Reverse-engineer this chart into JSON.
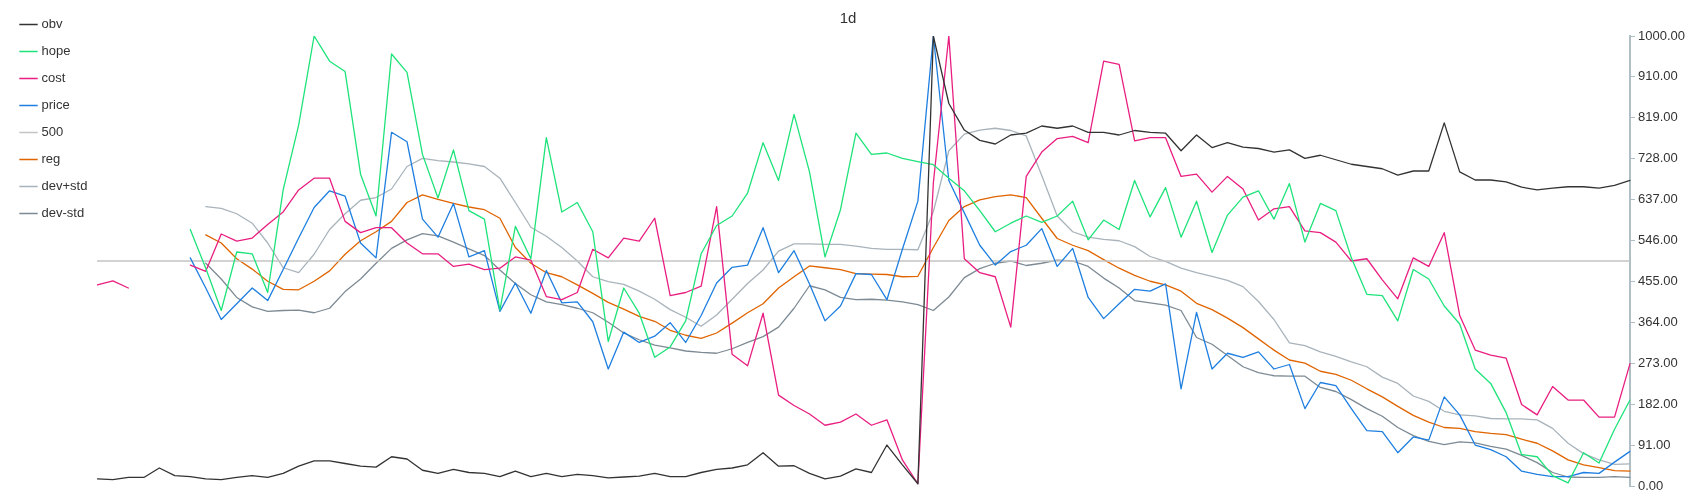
{
  "chart_data": {
    "type": "line",
    "title": "1d",
    "categories": [
      null,
      null,
      null,
      null,
      null,
      null,
      null,
      null,
      null,
      null,
      null,
      null,
      null,
      null,
      null,
      null,
      null,
      null,
      null,
      null,
      null,
      null,
      null,
      null,
      null,
      null,
      null,
      null,
      null,
      null,
      null,
      null,
      null,
      null,
      null,
      null,
      null,
      null,
      null,
      null,
      null,
      null,
      null,
      null,
      null,
      null,
      null,
      null,
      null,
      null,
      null,
      null,
      null,
      null,
      null,
      null,
      null,
      null,
      null,
      null,
      null,
      null,
      null,
      null,
      null,
      null,
      null,
      null,
      null,
      null,
      null,
      null,
      null,
      null,
      null,
      null,
      null,
      null,
      null,
      null,
      null,
      null,
      null,
      null,
      null,
      null,
      null,
      null,
      null,
      null,
      null,
      null,
      null,
      null,
      null,
      null,
      null,
      null,
      null,
      null
    ],
    "ylim": [
      0,
      1000
    ],
    "yticks": [
      {
        "value": 0,
        "label": "0.00"
      },
      {
        "value": 91,
        "label": "91.00"
      },
      {
        "value": 182,
        "label": "182.00"
      },
      {
        "value": 273,
        "label": "273.00"
      },
      {
        "value": 364,
        "label": "364.00"
      },
      {
        "value": 455,
        "label": "455.00"
      },
      {
        "value": 546,
        "label": "546.00"
      },
      {
        "value": 637,
        "label": "637.00"
      },
      {
        "value": 728,
        "label": "728.00"
      },
      {
        "value": 819,
        "label": "819.00"
      },
      {
        "value": 910,
        "label": "910.00"
      },
      {
        "value": 1000,
        "label": "1000.00"
      }
    ],
    "legend": "top left",
    "marker": "none",
    "line_style": "solid",
    "series": [
      {
        "name": "obv",
        "color": "#333333",
        "values": [
          16,
          14,
          19,
          19,
          40,
          23,
          21,
          16,
          14,
          19,
          23,
          19,
          28,
          44,
          56,
          56,
          50,
          44,
          42,
          65,
          60,
          35,
          28,
          37,
          30,
          28,
          21,
          33,
          21,
          28,
          21,
          26,
          23,
          18,
          20,
          22,
          28,
          21,
          21,
          30,
          37,
          40,
          47,
          74,
          44,
          45,
          28,
          16,
          22,
          38,
          30,
          91,
          47,
          5,
          1000,
          850,
          791,
          768,
          760,
          780,
          784,
          800,
          795,
          800,
          786,
          786,
          780,
          790,
          786,
          784,
          745,
          780,
          752,
          763,
          753,
          750,
          742,
          747,
          728,
          735,
          725,
          715,
          710,
          705,
          691,
          700,
          700,
          807,
          698,
          680,
          680,
          676,
          664,
          658,
          662,
          665,
          665,
          662,
          668,
          679
        ]
      },
      {
        "name": "hope",
        "color": "#1ee37a",
        "values": [
          null,
          null,
          null,
          null,
          null,
          null,
          570,
          484,
          390,
          520,
          516,
          430,
          658,
          802,
          1000,
          944,
          921,
          693,
          600,
          960,
          919,
          737,
          640,
          747,
          612,
          593,
          391,
          577,
          505,
          774,
          609,
          630,
          565,
          321,
          440,
          384,
          286,
          309,
          367,
          516,
          579,
          600,
          651,
          763,
          679,
          826,
          698,
          509,
          614,
          784,
          737,
          740,
          728,
          721,
          714,
          684,
          656,
          612,
          565,
          584,
          600,
          586,
          600,
          633,
          547,
          591,
          570,
          679,
          598,
          663,
          553,
          633,
          519,
          602,
          642,
          656,
          593,
          672,
          542,
          628,
          612,
          507,
          426,
          423,
          367,
          481,
          460,
          400,
          360,
          260,
          228,
          163,
          70,
          65,
          23,
          7,
          74,
          51,
          126,
          191
        ]
      },
      {
        "name": "cost",
        "color": "#e91e80",
        "values": [
          447,
          456,
          440,
          null,
          null,
          null,
          491,
          477,
          560,
          544,
          551,
          581,
          609,
          658,
          684,
          684,
          588,
          563,
          574,
          574,
          540,
          516,
          516,
          488,
          493,
          481,
          484,
          509,
          502,
          421,
          414,
          430,
          526,
          507,
          551,
          544,
          595,
          423,
          430,
          444,
          621,
          293,
          267,
          384,
          202,
          179,
          160,
          135,
          142,
          160,
          135,
          147,
          58,
          5,
          674,
          1000,
          505,
          474,
          465,
          353,
          688,
          742,
          772,
          777,
          763,
          944,
          937,
          767,
          774,
          774,
          688,
          693,
          653,
          688,
          660,
          591,
          616,
          621,
          567,
          563,
          542,
          500,
          505,
          458,
          416,
          507,
          488,
          563,
          379,
          302,
          291,
          284,
          181,
          158,
          221,
          191,
          191,
          153,
          153,
          272
        ]
      },
      {
        "name": "price",
        "color": "#1e7fe0",
        "values": [
          null,
          null,
          null,
          null,
          null,
          null,
          507,
          440,
          370,
          405,
          440,
          412,
          481,
          551,
          619,
          656,
          644,
          540,
          507,
          786,
          765,
          593,
          553,
          628,
          509,
          523,
          388,
          451,
          384,
          479,
          407,
          409,
          365,
          260,
          342,
          319,
          333,
          363,
          319,
          379,
          451,
          486,
          491,
          574,
          474,
          523,
          449,
          367,
          400,
          472,
          470,
          414,
          526,
          633,
          1000,
          679,
          607,
          535,
          491,
          521,
          535,
          572,
          488,
          528,
          419,
          372,
          405,
          437,
          433,
          449,
          216,
          386,
          260,
          295,
          286,
          298,
          260,
          270,
          172,
          230,
          223,
          172,
          123,
          121,
          74,
          109,
          102,
          198,
          158,
          91,
          81,
          65,
          33,
          26,
          21,
          21,
          30,
          28,
          53,
          77
        ]
      },
      {
        "name": "500",
        "color": "#c4c4c4",
        "values": [
          500,
          500,
          500,
          500,
          500,
          500,
          500,
          500,
          500,
          500,
          500,
          500,
          500,
          500,
          500,
          500,
          500,
          500,
          500,
          500,
          500,
          500,
          500,
          500,
          500,
          500,
          500,
          500,
          500,
          500,
          500,
          500,
          500,
          500,
          500,
          500,
          500,
          500,
          500,
          500,
          500,
          500,
          500,
          500,
          500,
          500,
          500,
          500,
          500,
          500,
          500,
          500,
          500,
          500,
          500,
          500,
          500,
          500,
          500,
          500,
          500,
          500,
          500,
          500,
          500,
          500,
          500,
          500,
          500,
          500,
          500,
          500,
          500,
          500,
          500,
          500,
          500,
          500,
          500,
          500,
          500,
          500,
          500,
          500,
          500,
          500,
          500,
          500,
          500,
          500,
          500,
          500,
          500,
          500,
          500,
          500,
          500,
          500,
          500,
          500
        ]
      },
      {
        "name": "reg",
        "color": "#e06400",
        "values": [
          null,
          null,
          null,
          null,
          null,
          null,
          null,
          558,
          540,
          505,
          482,
          455,
          437,
          436,
          455,
          478,
          515,
          545,
          565,
          588,
          630,
          647,
          637,
          628,
          620,
          614,
          595,
          530,
          495,
          474,
          465,
          447,
          428,
          408,
          393,
          377,
          366,
          346,
          335,
          328,
          340,
          362,
          385,
          405,
          440,
          465,
          489,
          485,
          481,
          472,
          471,
          470,
          465,
          466,
          530,
          590,
          621,
          636,
          643,
          647,
          641,
          595,
          550,
          535,
          523,
          503,
          484,
          468,
          455,
          447,
          433,
          406,
          392,
          373,
          352,
          327,
          302,
          280,
          273,
          255,
          248,
          235,
          216,
          198,
          177,
          157,
          142,
          130,
          128,
          121,
          117,
          114,
          104,
          95,
          78,
          58,
          47,
          41,
          34,
          33
        ]
      },
      {
        "name": "dev+std",
        "color": "#a9b3bb",
        "values": [
          null,
          null,
          null,
          null,
          null,
          null,
          null,
          621,
          617,
          605,
          584,
          540,
          485,
          474,
          515,
          570,
          605,
          635,
          641,
          660,
          710,
          728,
          723,
          720,
          716,
          710,
          684,
          630,
          575,
          555,
          530,
          500,
          465,
          454,
          448,
          433,
          415,
          392,
          375,
          355,
          380,
          415,
          450,
          480,
          522,
          538,
          538,
          537,
          537,
          533,
          528,
          526,
          526,
          525,
          610,
          745,
          782,
          791,
          795,
          790,
          778,
          690,
          600,
          565,
          553,
          548,
          545,
          532,
          510,
          499,
          484,
          474,
          466,
          457,
          443,
          410,
          370,
          318,
          312,
          298,
          288,
          276,
          265,
          242,
          228,
          200,
          188,
          166,
          158,
          156,
          150,
          149,
          149,
          147,
          128,
          95,
          72,
          58,
          48,
          49
        ]
      },
      {
        "name": "dev-std",
        "color": "#7d8a94",
        "values": [
          null,
          null,
          null,
          null,
          null,
          null,
          null,
          495,
          460,
          419,
          398,
          388,
          390,
          391,
          385,
          395,
          432,
          460,
          495,
          528,
          547,
          561,
          556,
          542,
          527,
          512,
          480,
          450,
          425,
          409,
          403,
          395,
          385,
          364,
          340,
          325,
          313,
          307,
          300,
          297,
          295,
          305,
          319,
          332,
          353,
          395,
          445,
          436,
          419,
          414,
          415,
          413,
          409,
          403,
          390,
          420,
          463,
          483,
          495,
          500,
          490,
          495,
          502,
          500,
          488,
          462,
          440,
          412,
          407,
          402,
          390,
          330,
          315,
          290,
          265,
          252,
          245,
          244,
          244,
          219,
          210,
          192,
          172,
          155,
          130,
          112,
          99,
          92,
          98,
          96,
          88,
          82,
          68,
          52,
          30,
          20,
          19,
          19,
          21,
          19
        ]
      }
    ]
  }
}
